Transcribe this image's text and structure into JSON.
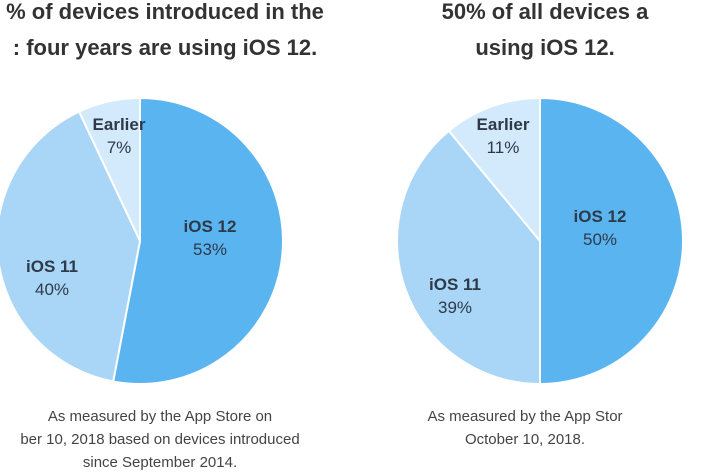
{
  "headlines": {
    "left": [
      "% of devices introduced in the",
      ": four years are using iOS 12."
    ],
    "right": [
      "50% of all devices a",
      "using iOS 12."
    ]
  },
  "notes": {
    "left": [
      "As measured by the App Store on",
      "ber 10, 2018 based on devices introduced",
      "since September 2014."
    ],
    "right": [
      "As measured by the App Stor",
      "October 10, 2018."
    ]
  },
  "colors": {
    "ios12": "#5ab4f0",
    "ios11": "#a9d6f7",
    "earlier": "#d2eafb",
    "divider": "#ffffff"
  },
  "chart_data": [
    {
      "type": "pie",
      "title": "",
      "slices": [
        {
          "name": "iOS 12",
          "value": 53,
          "value_label": "53%",
          "color": "#5ab4f0"
        },
        {
          "name": "iOS 11",
          "value": 40,
          "value_label": "40%",
          "color": "#a9d6f7"
        },
        {
          "name": "Earlier",
          "value": 7,
          "value_label": "7%",
          "color": "#d2eafb"
        }
      ]
    },
    {
      "type": "pie",
      "title": "",
      "slices": [
        {
          "name": "iOS 12",
          "value": 50,
          "value_label": "50%",
          "color": "#5ab4f0"
        },
        {
          "name": "iOS 11",
          "value": 39,
          "value_label": "39%",
          "color": "#a9d6f7"
        },
        {
          "name": "Earlier",
          "value": 11,
          "value_label": "11%",
          "color": "#d2eafb"
        }
      ]
    }
  ]
}
